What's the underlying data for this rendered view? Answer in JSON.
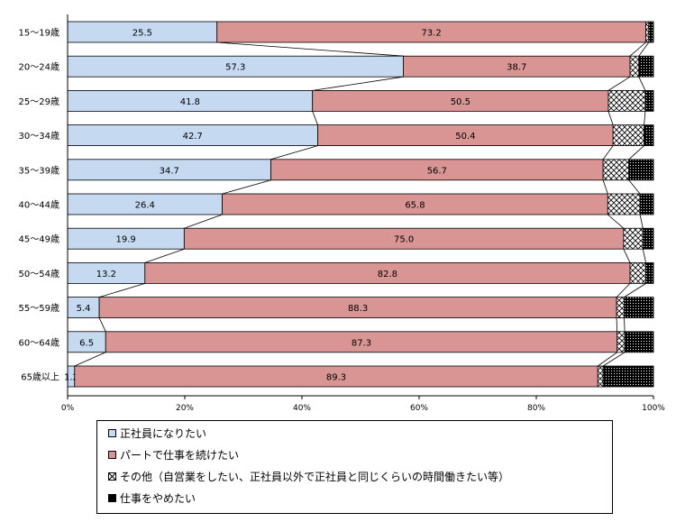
{
  "chart_data": {
    "type": "bar",
    "orientation": "horizontal",
    "stacked": true,
    "percent_stacked": true,
    "categories": [
      "15～19歳",
      "20～24歳",
      "25～29歳",
      "30～34歳",
      "35～39歳",
      "40～44歳",
      "45～49歳",
      "50～54歳",
      "55～59歳",
      "60～64歳",
      "65歳以上"
    ],
    "series": [
      {
        "name": "正社員になりたい",
        "values": [
          25.5,
          57.3,
          41.8,
          42.7,
          34.7,
          26.4,
          19.9,
          13.2,
          5.4,
          6.5,
          1.2
        ],
        "color": "#c5d9f1",
        "pattern": "solid",
        "show_labels": true
      },
      {
        "name": "パートで仕事を続けたい",
        "values": [
          73.2,
          38.7,
          50.5,
          50.4,
          56.7,
          65.8,
          75.0,
          82.8,
          88.3,
          87.3,
          89.3
        ],
        "color": "#d99594",
        "pattern": "solid",
        "show_labels": true
      },
      {
        "name": "その他（自営業をしたい、正社員以外で正社員と同じくらいの時間働きたい等）",
        "values": [
          0.5,
          1.5,
          6.3,
          5.3,
          4.4,
          5.5,
          3.3,
          2.7,
          1.3,
          1.3,
          0.9
        ],
        "color": "#ffffff",
        "pattern": "crosshatch",
        "show_labels": false
      },
      {
        "name": "仕事をやめたい",
        "values": [
          0.8,
          2.5,
          1.4,
          1.6,
          4.2,
          2.3,
          1.8,
          1.3,
          5.0,
          4.9,
          8.6
        ],
        "color": "#000000",
        "pattern": "dots",
        "show_labels": false
      }
    ],
    "x_ticks": [
      "0%",
      "20%",
      "40%",
      "60%",
      "80%",
      "100%"
    ],
    "xlim": [
      0,
      100
    ],
    "series_lines": true,
    "legend_position": "bottom",
    "grid": false
  }
}
